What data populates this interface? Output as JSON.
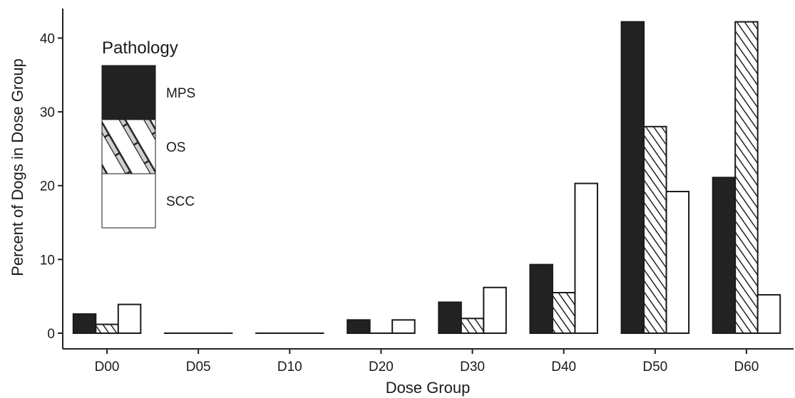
{
  "chart_data": {
    "type": "bar",
    "xlabel": "Dose Group",
    "ylabel": "Percent of Dogs in Dose Group",
    "categories": [
      "D00",
      "D05",
      "D10",
      "D20",
      "D30",
      "D40",
      "D50",
      "D60"
    ],
    "ylim": [
      0,
      44
    ],
    "yticks": [
      0,
      10,
      20,
      30,
      40
    ],
    "grid": false,
    "legend": {
      "title": "Pathology",
      "position": "top-left (inside)"
    },
    "series": [
      {
        "name": "MPS",
        "fill": "solid",
        "color": "#222222",
        "values": [
          2.6,
          0,
          0,
          1.8,
          4.2,
          9.3,
          42.2,
          21.1
        ]
      },
      {
        "name": "OS",
        "fill": "hatched",
        "color": "#222222",
        "values": [
          1.2,
          0,
          0,
          0,
          2.0,
          5.5,
          28.0,
          42.2
        ]
      },
      {
        "name": "SCC",
        "fill": "white",
        "color": "#222222",
        "values": [
          3.9,
          0,
          0,
          1.8,
          6.2,
          20.3,
          19.2,
          5.2
        ]
      }
    ]
  }
}
